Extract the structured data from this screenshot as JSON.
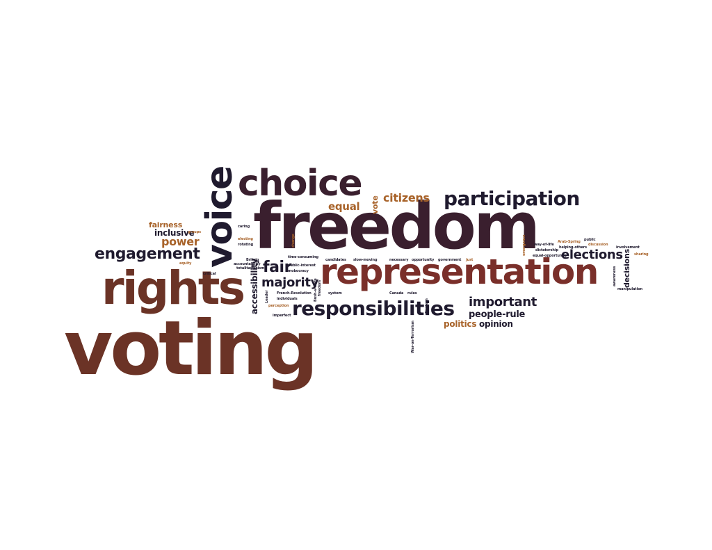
{
  "words": {
    "voting": "voting",
    "freedom": "freedom",
    "representation": "representation",
    "rights": "rights",
    "voice": "voice",
    "choice": "choice",
    "participation": "participation",
    "responsibilities": "responsibilities",
    "engagement": "engagement",
    "citizens": "citizens",
    "equal": "equal",
    "vote": "vote",
    "majority": "majority",
    "fair": "fair",
    "elections": "elections",
    "important": "important",
    "people_rule": "people-rule",
    "opinion": "opinion",
    "politics": "politics",
    "power": "power",
    "inclusive": "inclusive",
    "fairness": "fairness",
    "accessibility": "accessibility",
    "decisions": "decisions",
    "groups": "groups",
    "caring": "caring",
    "electing": "electing",
    "rotating": "rotating",
    "change": "change",
    "equity": "equity",
    "critical": "critical",
    "accountability": "accountability",
    "totalitarianism": "totalitarianism",
    "britain": "Britain",
    "time_consuming": "time-consuming",
    "candidates": "candidates",
    "slow_moving": "slow-moving",
    "necessary": "necessary",
    "opportunity": "opportunity",
    "government": "government",
    "just": "just",
    "public_interest": "public-interest",
    "mobocracy": "mobocracy",
    "french_revolution": "French-Revolution",
    "individuals": "individuals",
    "canada": "Canada",
    "rules": "rules",
    "system": "system",
    "perception": "perception",
    "imperfect": "imperfect",
    "leader": "Leader",
    "bush_vs_gore": "Bush-v-Gore",
    "western": "Western",
    "war_on_terrorism": "War-on-Terrorism",
    "freedom_small": "freedom",
    "emergence": "emergence",
    "way_of_life": "way-of-life",
    "dictatorship": "dictatorship",
    "equal_opportunity": "equal-opportunity",
    "arab_spring": "Arab-Spring",
    "helping_others": "helping-others",
    "public": "public",
    "discussion": "discussion",
    "involvement": "involvement",
    "sharing": "sharing",
    "awareness": "awareness",
    "manipulation": "manipulation"
  }
}
